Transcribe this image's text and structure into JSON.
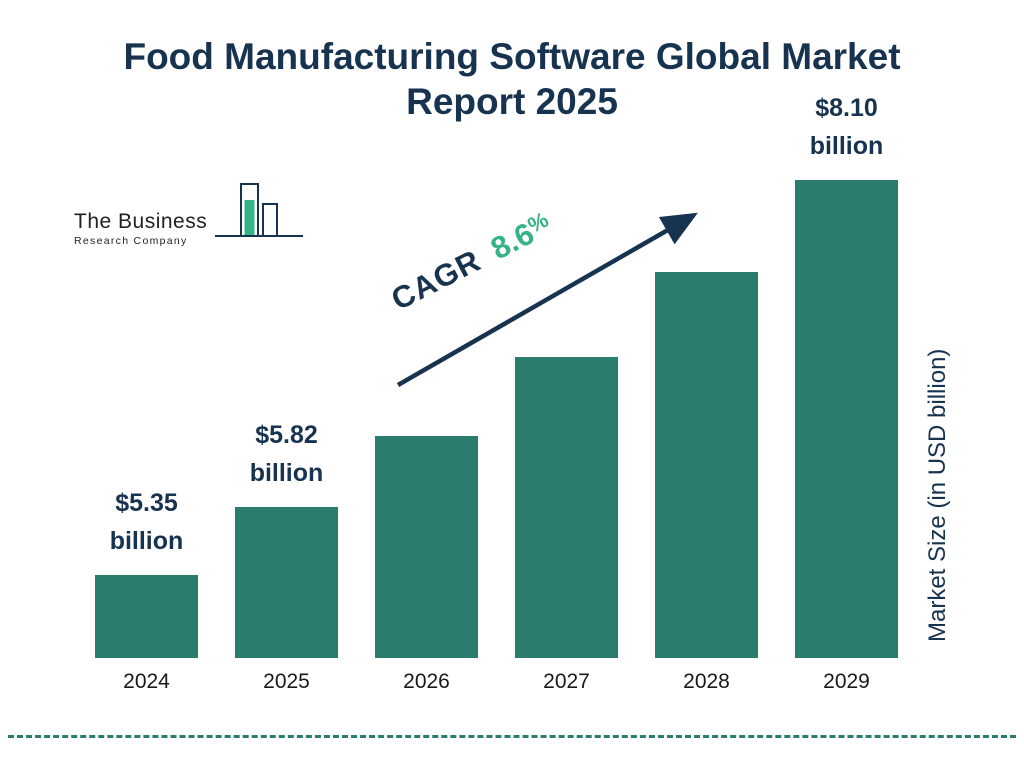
{
  "title": {
    "line1": "Food Manufacturing Software Global Market",
    "line2": "Report 2025"
  },
  "logo": {
    "name": "The Business",
    "subname": "Research Company"
  },
  "cagr": {
    "label": "CAGR",
    "value_number": "8.6",
    "value_percent_sign": "%"
  },
  "y_axis_label": "Market Size (in USD billion)",
  "colors": {
    "bar": "#2a7d6e",
    "navy": "#17334f",
    "green": "#35b384"
  },
  "chart_data": {
    "type": "bar",
    "title": "Food Manufacturing Software Global Market Report 2025",
    "categories": [
      "2024",
      "2025",
      "2026",
      "2027",
      "2028",
      "2029"
    ],
    "values": [
      5.35,
      5.82,
      6.32,
      6.87,
      7.46,
      8.1
    ],
    "bar_labels": [
      {
        "amount": "$5.35",
        "unit": "billion",
        "show": true
      },
      {
        "amount": "$5.82",
        "unit": "billion",
        "show": true
      },
      {
        "amount": "",
        "unit": "",
        "show": false
      },
      {
        "amount": "",
        "unit": "",
        "show": false
      },
      {
        "amount": "",
        "unit": "",
        "show": false
      },
      {
        "amount": "$8.10",
        "unit": "billion",
        "show": true
      }
    ],
    "xlabel": "",
    "ylabel": "Market Size (in USD billion)",
    "ylim": [
      4.77,
      8.3
    ],
    "cagr": "8.6%",
    "legend": "none",
    "grid": false,
    "bar_color": "#2a7d6e"
  }
}
